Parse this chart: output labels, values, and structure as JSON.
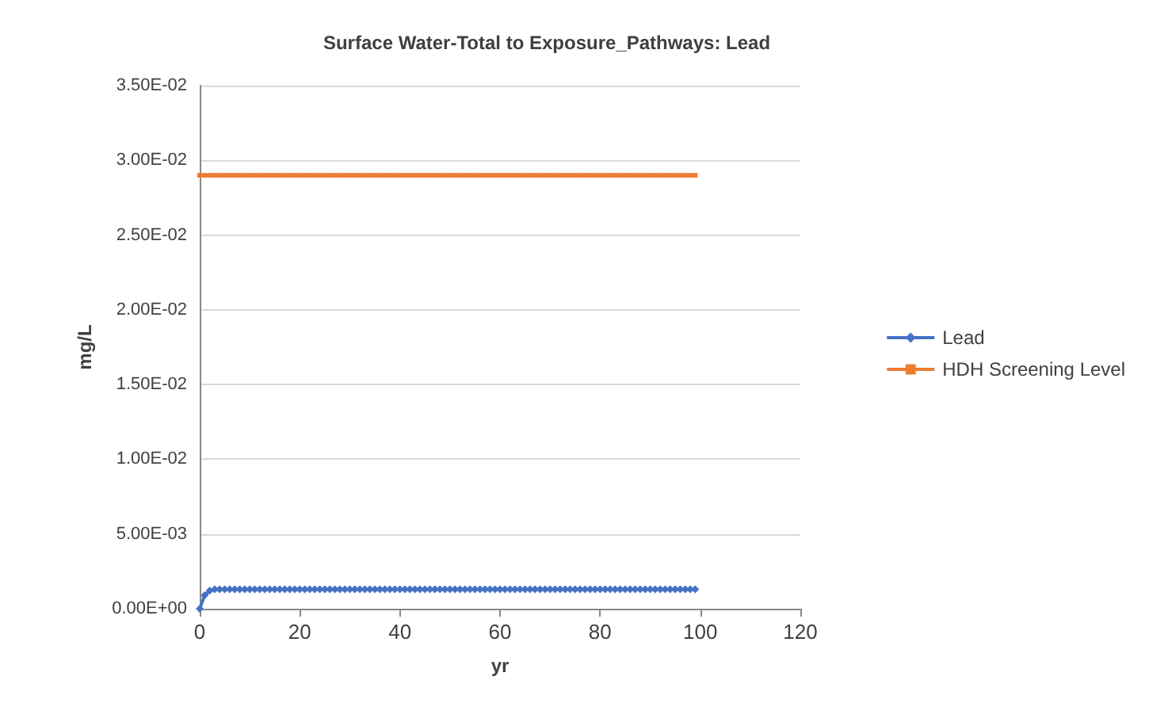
{
  "chart_data": {
    "type": "line",
    "title": "Surface Water-Total to Exposure_Pathways: Lead",
    "xlabel": "yr",
    "ylabel": "mg/L",
    "x": [
      0,
      1,
      2,
      3,
      4,
      5,
      6,
      7,
      8,
      9,
      10,
      11,
      12,
      13,
      14,
      15,
      16,
      17,
      18,
      19,
      20,
      21,
      22,
      23,
      24,
      25,
      26,
      27,
      28,
      29,
      30,
      31,
      32,
      33,
      34,
      35,
      36,
      37,
      38,
      39,
      40,
      41,
      42,
      43,
      44,
      45,
      46,
      47,
      48,
      49,
      50,
      51,
      52,
      53,
      54,
      55,
      56,
      57,
      58,
      59,
      60,
      61,
      62,
      63,
      64,
      65,
      66,
      67,
      68,
      69,
      70,
      71,
      72,
      73,
      74,
      75,
      76,
      77,
      78,
      79,
      80,
      81,
      82,
      83,
      84,
      85,
      86,
      87,
      88,
      89,
      90,
      91,
      92,
      93,
      94,
      95,
      96,
      97,
      98,
      99
    ],
    "series": [
      {
        "name": "Lead",
        "color": "#4472c4",
        "marker": "diamond",
        "values": [
          0,
          0.0009,
          0.0012,
          0.0013,
          0.0013,
          0.0013,
          0.0013,
          0.0013,
          0.0013,
          0.0013,
          0.0013,
          0.0013,
          0.0013,
          0.0013,
          0.0013,
          0.0013,
          0.0013,
          0.0013,
          0.0013,
          0.0013,
          0.0013,
          0.0013,
          0.0013,
          0.0013,
          0.0013,
          0.0013,
          0.0013,
          0.0013,
          0.0013,
          0.0013,
          0.0013,
          0.0013,
          0.0013,
          0.0013,
          0.0013,
          0.0013,
          0.0013,
          0.0013,
          0.0013,
          0.0013,
          0.0013,
          0.0013,
          0.0013,
          0.0013,
          0.0013,
          0.0013,
          0.0013,
          0.0013,
          0.0013,
          0.0013,
          0.0013,
          0.0013,
          0.0013,
          0.0013,
          0.0013,
          0.0013,
          0.0013,
          0.0013,
          0.0013,
          0.0013,
          0.0013,
          0.0013,
          0.0013,
          0.0013,
          0.0013,
          0.0013,
          0.0013,
          0.0013,
          0.0013,
          0.0013,
          0.0013,
          0.0013,
          0.0013,
          0.0013,
          0.0013,
          0.0013,
          0.0013,
          0.0013,
          0.0013,
          0.0013,
          0.0013,
          0.0013,
          0.0013,
          0.0013,
          0.0013,
          0.0013,
          0.0013,
          0.0013,
          0.0013,
          0.0013,
          0.0013,
          0.0013,
          0.0013,
          0.0013,
          0.0013,
          0.0013,
          0.0013,
          0.0013,
          0.0013,
          0.0013
        ]
      },
      {
        "name": "HDH Screening Level",
        "color": "#ed7d31",
        "marker": "square",
        "values": [
          0.029,
          0.029,
          0.029,
          0.029,
          0.029,
          0.029,
          0.029,
          0.029,
          0.029,
          0.029,
          0.029,
          0.029,
          0.029,
          0.029,
          0.029,
          0.029,
          0.029,
          0.029,
          0.029,
          0.029,
          0.029,
          0.029,
          0.029,
          0.029,
          0.029,
          0.029,
          0.029,
          0.029,
          0.029,
          0.029,
          0.029,
          0.029,
          0.029,
          0.029,
          0.029,
          0.029,
          0.029,
          0.029,
          0.029,
          0.029,
          0.029,
          0.029,
          0.029,
          0.029,
          0.029,
          0.029,
          0.029,
          0.029,
          0.029,
          0.029,
          0.029,
          0.029,
          0.029,
          0.029,
          0.029,
          0.029,
          0.029,
          0.029,
          0.029,
          0.029,
          0.029,
          0.029,
          0.029,
          0.029,
          0.029,
          0.029,
          0.029,
          0.029,
          0.029,
          0.029,
          0.029,
          0.029,
          0.029,
          0.029,
          0.029,
          0.029,
          0.029,
          0.029,
          0.029,
          0.029,
          0.029,
          0.029,
          0.029,
          0.029,
          0.029,
          0.029,
          0.029,
          0.029,
          0.029,
          0.029,
          0.029,
          0.029,
          0.029,
          0.029,
          0.029,
          0.029,
          0.029,
          0.029,
          0.029,
          0.029
        ]
      }
    ],
    "xlim": [
      0,
      120
    ],
    "xticks": [
      0,
      20,
      40,
      60,
      80,
      100,
      120
    ],
    "ylim": [
      0,
      0.035
    ],
    "yticks": [
      {
        "value": 0,
        "label": "0.00E+00"
      },
      {
        "value": 0.005,
        "label": "5.00E-03"
      },
      {
        "value": 0.01,
        "label": "1.00E-02"
      },
      {
        "value": 0.015,
        "label": "1.50E-02"
      },
      {
        "value": 0.02,
        "label": "2.00E-02"
      },
      {
        "value": 0.025,
        "label": "2.50E-02"
      },
      {
        "value": 0.03,
        "label": "3.00E-02"
      },
      {
        "value": 0.035,
        "label": "3.50E-02"
      }
    ],
    "grid": "y",
    "legend": "right"
  }
}
